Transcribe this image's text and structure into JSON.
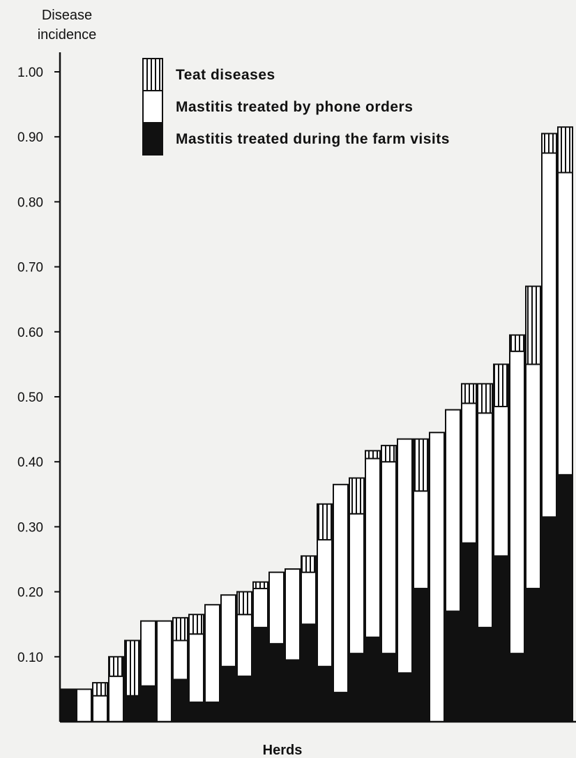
{
  "chart_data": {
    "type": "bar",
    "stacked": true,
    "ylabel": [
      "Disease",
      "incidence"
    ],
    "xlabel": "Herds",
    "ylim": [
      0,
      1.0
    ],
    "yticks": [
      "0.10",
      "0.20",
      "0.30",
      "0.40",
      "0.50",
      "0.60",
      "0.70",
      "0.80",
      "0.90",
      "1.00"
    ],
    "legend_position": "top-left",
    "series": [
      {
        "name": "Mastitis treated during the farm visits",
        "pattern": "solid",
        "color": "#111111",
        "values": [
          0.05,
          0.0,
          0.0,
          0.0,
          0.04,
          0.055,
          0.0,
          0.065,
          0.03,
          0.03,
          0.085,
          0.07,
          0.145,
          0.12,
          0.095,
          0.15,
          0.085,
          0.045,
          0.105,
          0.13,
          0.105,
          0.075,
          0.205,
          0.0,
          0.17,
          0.275,
          0.145,
          0.255,
          0.105,
          0.205,
          0.315,
          0.38
        ]
      },
      {
        "name": "Mastitis treated by phone orders",
        "pattern": "white",
        "color": "#ffffff",
        "values": [
          0.0,
          0.05,
          0.04,
          0.07,
          0.0,
          0.1,
          0.155,
          0.06,
          0.105,
          0.15,
          0.11,
          0.095,
          0.06,
          0.11,
          0.14,
          0.08,
          0.195,
          0.32,
          0.215,
          0.275,
          0.295,
          0.36,
          0.15,
          0.445,
          0.31,
          0.215,
          0.33,
          0.23,
          0.465,
          0.345,
          0.56,
          0.465
        ]
      },
      {
        "name": "Teat diseases",
        "pattern": "vertical-hatch",
        "color": "#ffffff",
        "values": [
          0.0,
          0.0,
          0.02,
          0.03,
          0.085,
          0.0,
          0.0,
          0.035,
          0.03,
          0.0,
          0.0,
          0.035,
          0.01,
          0.0,
          0.0,
          0.025,
          0.055,
          0.0,
          0.055,
          0.012,
          0.025,
          0.0,
          0.08,
          0.0,
          0.0,
          0.03,
          0.045,
          0.065,
          0.025,
          0.12,
          0.03,
          0.07
        ]
      }
    ]
  }
}
